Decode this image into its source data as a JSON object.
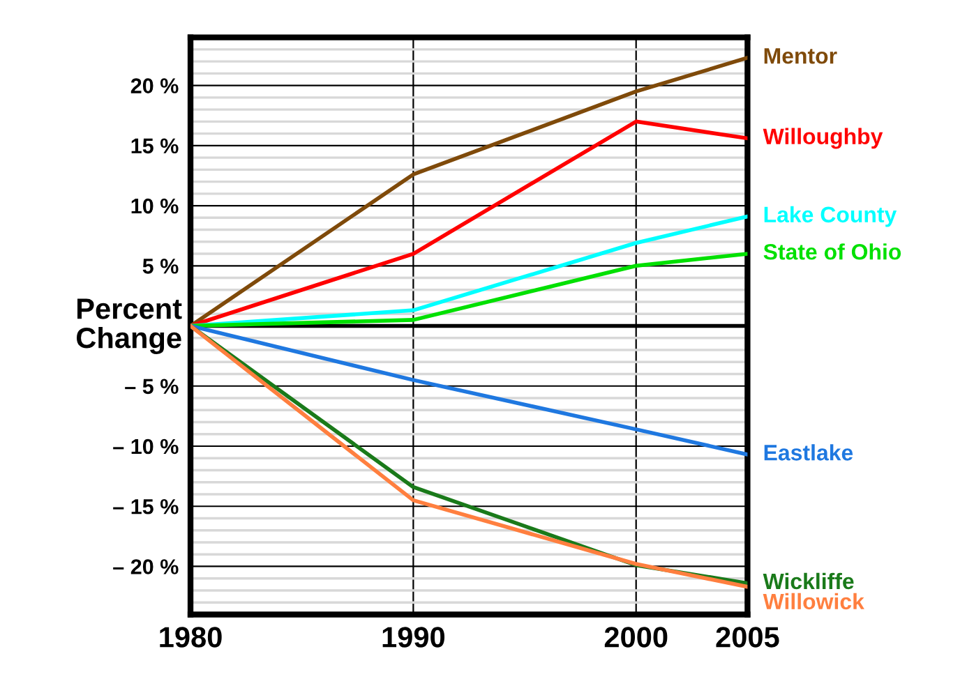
{
  "chart_data": {
    "type": "line",
    "ylabel": "Percent\nChange",
    "x": [
      1980,
      1990,
      2000,
      2005
    ],
    "series": [
      {
        "name": "Mentor",
        "color": "#7f4a0a",
        "values": [
          0,
          12.6,
          19.5,
          22.3
        ]
      },
      {
        "name": "Willoughby",
        "color": "#ff0000",
        "values": [
          0,
          6.0,
          17.0,
          15.6
        ]
      },
      {
        "name": "Lake County",
        "color": "#00ffff",
        "values": [
          0,
          1.3,
          6.9,
          9.1
        ]
      },
      {
        "name": "State of Ohio",
        "color": "#00e000",
        "values": [
          0,
          0.5,
          5.0,
          6.0
        ]
      },
      {
        "name": "Eastlake",
        "color": "#1f78e0",
        "values": [
          0,
          -4.5,
          -8.6,
          -10.7
        ]
      },
      {
        "name": "Wickliffe",
        "color": "#1a7a1a",
        "values": [
          0,
          -13.4,
          -19.9,
          -21.4
        ]
      },
      {
        "name": "Willowick",
        "color": "#ff7f3f",
        "values": [
          0,
          -14.5,
          -19.8,
          -21.7
        ]
      }
    ],
    "xlim": [
      1980,
      2005
    ],
    "xticks": [
      1980,
      1990,
      2000,
      2005
    ],
    "ylim": [
      -24,
      24
    ],
    "yticks": [
      {
        "value": -20,
        "label": "– 20 %"
      },
      {
        "value": -15,
        "label": "– 15 %"
      },
      {
        "value": -10,
        "label": "– 10 %"
      },
      {
        "value": -5,
        "label": "– 5 %"
      },
      {
        "value": 0,
        "label": null
      },
      {
        "value": 5,
        "label": "5 %"
      },
      {
        "value": 10,
        "label": "10 %"
      },
      {
        "value": 15,
        "label": "15 %"
      },
      {
        "value": 20,
        "label": "20 %"
      }
    ],
    "ref_lines": [
      {
        "axis": "y",
        "value": 0,
        "color": "#000000"
      }
    ],
    "grid": true,
    "legend": false,
    "marker": "none",
    "line_style": "solid"
  }
}
